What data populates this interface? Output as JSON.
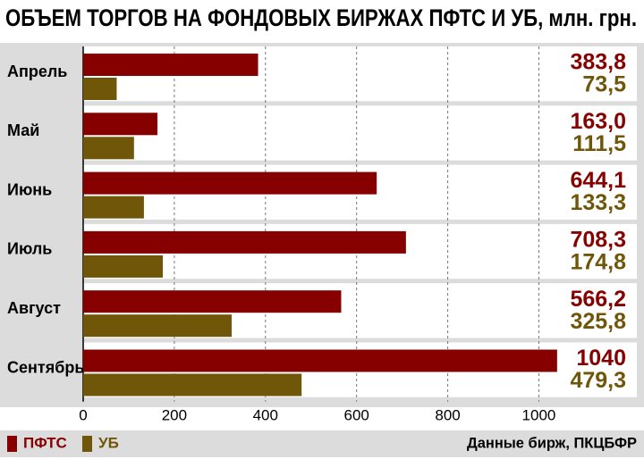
{
  "chart_data": {
    "type": "hbar",
    "title": "ОБЪЕМ ТОРГОВ НА ФОНДОВЫХ БИРЖАХ ПФТС И УБ, млн. грн.",
    "categories": [
      "Апрель",
      "Май",
      "Июнь",
      "Июль",
      "Август",
      "Сентябрь"
    ],
    "series": [
      {
        "name": "ПФТС",
        "color": "#870000",
        "values": [
          383.8,
          163.0,
          644.1,
          708.3,
          566.2,
          1040
        ],
        "value_labels": [
          "383,8",
          "163,0",
          "644,1",
          "708,3",
          "566,2",
          "1040"
        ]
      },
      {
        "name": "УБ",
        "color": "#6f5608",
        "values": [
          73.5,
          111.5,
          133.3,
          174.8,
          325.8,
          479.3
        ],
        "value_labels": [
          "73,5",
          "111,5",
          "133,3",
          "174,8",
          "325,8",
          "479,3"
        ]
      }
    ],
    "xlim": [
      0,
      1215
    ],
    "xticks": [
      0,
      200,
      400,
      600,
      800,
      1000
    ],
    "grid": true,
    "source": "Данные бирж, ПКЦБФР"
  }
}
